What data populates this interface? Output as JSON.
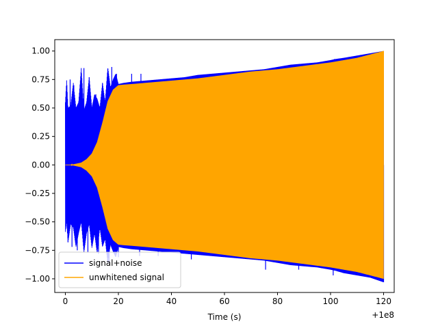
{
  "chart_data": {
    "type": "line",
    "title": "",
    "xlabel": "Time (s)",
    "ylabel": "",
    "x_offset_label": "+1e8",
    "xlim": [
      -4,
      124
    ],
    "ylim": [
      -1.12,
      1.1
    ],
    "xticks": [
      0,
      20,
      40,
      60,
      80,
      100,
      120
    ],
    "xtick_labels": [
      "0",
      "20",
      "40",
      "60",
      "80",
      "100",
      "120"
    ],
    "yticks": [
      -1.0,
      -0.75,
      -0.5,
      -0.25,
      0.0,
      0.25,
      0.5,
      0.75,
      1.0
    ],
    "ytick_labels": [
      "−1.00",
      "−0.75",
      "−0.50",
      "−0.25",
      "0.00",
      "0.25",
      "0.50",
      "0.75",
      "1.00"
    ],
    "grid": false,
    "legend_position": "bottom-left",
    "series": [
      {
        "name": "signal+noise",
        "color": "#0000ff",
        "envelope": {
          "x": [
            0,
            0.5,
            1,
            2,
            3,
            4,
            5,
            6,
            7,
            8,
            9,
            10,
            11,
            12,
            13,
            14,
            15,
            16,
            17,
            18,
            19,
            20,
            22,
            25,
            30,
            35,
            40,
            45,
            50,
            55,
            60,
            65,
            70,
            75,
            80,
            85,
            90,
            95,
            100,
            102,
            105,
            110,
            115,
            120
          ],
          "upper": [
            0.55,
            0.75,
            0.5,
            0.52,
            0.72,
            0.5,
            0.55,
            0.85,
            0.48,
            0.55,
            0.77,
            0.5,
            0.62,
            0.58,
            0.5,
            0.72,
            0.55,
            0.86,
            0.68,
            0.75,
            0.8,
            0.71,
            0.72,
            0.73,
            0.74,
            0.75,
            0.76,
            0.77,
            0.79,
            0.8,
            0.81,
            0.82,
            0.83,
            0.84,
            0.86,
            0.88,
            0.89,
            0.9,
            0.92,
            0.93,
            0.94,
            0.96,
            0.98,
            1.0
          ],
          "lower": [
            -0.6,
            -0.5,
            -0.68,
            -0.52,
            -0.55,
            -0.72,
            -0.6,
            -0.5,
            -0.77,
            -0.6,
            -0.52,
            -0.73,
            -0.6,
            -0.78,
            -0.55,
            -0.72,
            -0.65,
            -0.86,
            -0.7,
            -0.76,
            -0.81,
            -0.72,
            -0.73,
            -0.74,
            -0.75,
            -0.76,
            -0.77,
            -0.78,
            -0.79,
            -0.8,
            -0.81,
            -0.82,
            -0.83,
            -0.84,
            -0.86,
            -0.88,
            -0.89,
            -0.9,
            -0.92,
            -0.93,
            -0.95,
            -0.97,
            -0.99,
            -1.03
          ]
        },
        "spikes": [
          [
            0.3,
            0.6
          ],
          [
            1.8,
            0.75
          ],
          [
            3.2,
            0.7
          ],
          [
            5.5,
            0.65
          ],
          [
            7.0,
            0.85
          ],
          [
            9.0,
            0.77
          ],
          [
            11.5,
            0.62
          ],
          [
            14.0,
            0.72
          ],
          [
            17.5,
            0.86
          ],
          [
            19.3,
            0.8
          ],
          [
            25.0,
            0.8
          ],
          [
            28.5,
            0.8
          ],
          [
            101.5,
            0.93
          ],
          [
            1.0,
            -0.68
          ],
          [
            2.5,
            -0.72
          ],
          [
            4.5,
            -0.75
          ],
          [
            8.5,
            -0.77
          ],
          [
            12.5,
            -0.78
          ],
          [
            16.5,
            -0.86
          ],
          [
            20.0,
            -0.81
          ],
          [
            28.0,
            -0.8
          ],
          [
            35.0,
            -0.8
          ],
          [
            47.5,
            -0.83
          ],
          [
            75.5,
            -0.92
          ],
          [
            88.0,
            -0.92
          ],
          [
            101.0,
            -0.97
          ],
          [
            120.0,
            -1.03
          ]
        ]
      },
      {
        "name": "unwhitened signal",
        "color": "#ffa500",
        "envelope": {
          "x": [
            0,
            2,
            4,
            6,
            8,
            10,
            12,
            14,
            16,
            18,
            20,
            22,
            25,
            30,
            40,
            50,
            60,
            70,
            80,
            90,
            100,
            110,
            120
          ],
          "upper": [
            0.0,
            0.0,
            0.01,
            0.02,
            0.05,
            0.1,
            0.2,
            0.37,
            0.56,
            0.66,
            0.7,
            0.705,
            0.71,
            0.72,
            0.74,
            0.76,
            0.79,
            0.82,
            0.84,
            0.87,
            0.9,
            0.94,
            1.0
          ],
          "lower": [
            0.0,
            0.0,
            -0.01,
            -0.02,
            -0.05,
            -0.1,
            -0.2,
            -0.37,
            -0.56,
            -0.66,
            -0.7,
            -0.705,
            -0.71,
            -0.72,
            -0.74,
            -0.76,
            -0.79,
            -0.82,
            -0.84,
            -0.87,
            -0.9,
            -0.94,
            -1.0
          ]
        }
      }
    ]
  }
}
